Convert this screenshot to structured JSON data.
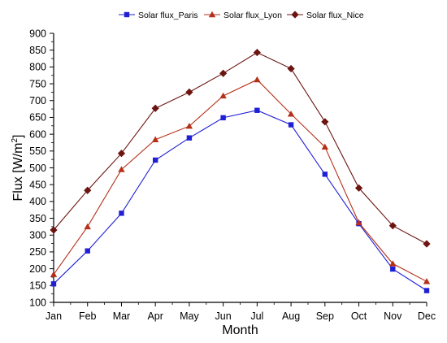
{
  "chart_data": {
    "type": "line",
    "xlabel": "Month",
    "ylabel": "Flux [W/m2]",
    "ylabel_main": "Flux [W/m",
    "ylabel_sup": "2",
    "ylabel_end": "]",
    "categories": [
      "Jan",
      "Feb",
      "Mar",
      "Apr",
      "May",
      "Jun",
      "Jul",
      "Aug",
      "Sep",
      "Oct",
      "Nov",
      "Dec"
    ],
    "ylim": [
      100,
      900
    ],
    "yticks": [
      100,
      150,
      200,
      250,
      300,
      350,
      400,
      450,
      500,
      550,
      600,
      650,
      700,
      750,
      800,
      850,
      900
    ],
    "grid": false,
    "legend_position": "top-center",
    "series": [
      {
        "name": "Solar flux_Paris",
        "marker": "square",
        "color": "#1f1fd6",
        "values": [
          155,
          253,
          365,
          523,
          589,
          649,
          671,
          628,
          481,
          334,
          199,
          135
        ]
      },
      {
        "name": "Solar flux_Lyon",
        "marker": "triangle",
        "color": "#b5301a",
        "values": [
          183,
          325,
          495,
          584,
          624,
          714,
          762,
          660,
          562,
          337,
          215,
          162
        ]
      },
      {
        "name": "Solar flux_Nice",
        "marker": "diamond",
        "color": "#6b1410",
        "values": [
          315,
          433,
          543,
          677,
          725,
          781,
          843,
          795,
          637,
          440,
          328,
          274
        ]
      }
    ]
  }
}
